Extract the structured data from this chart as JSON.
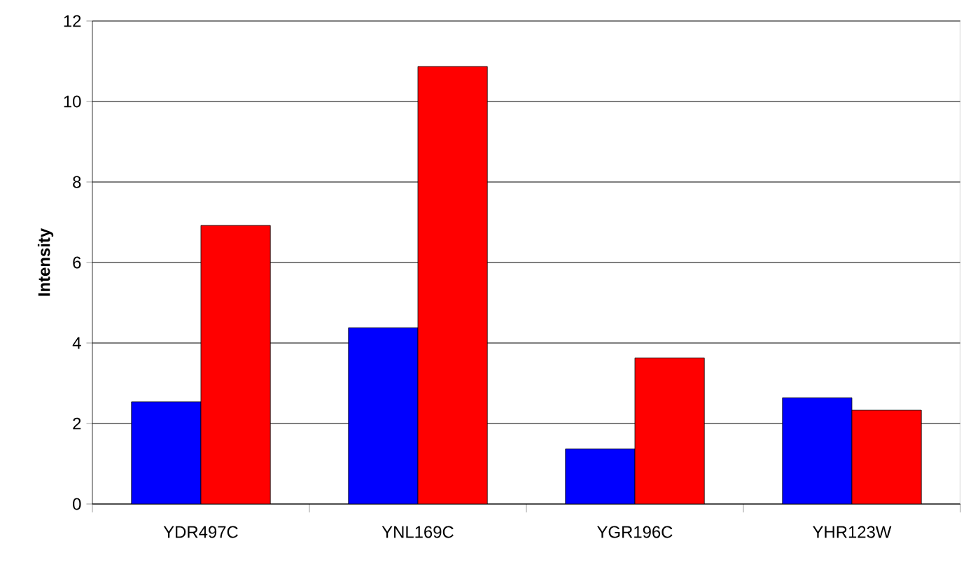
{
  "chart_data": {
    "type": "bar",
    "ylabel": "Intensity",
    "categories": [
      "YDR497C",
      "YNL169C",
      "YGR196C",
      "YHR123W"
    ],
    "series": [
      {
        "color": "#0000ff",
        "values": [
          2.54,
          4.38,
          1.37,
          2.64
        ]
      },
      {
        "color": "#ff0000",
        "values": [
          6.92,
          10.87,
          3.63,
          2.33
        ]
      }
    ],
    "ylim": [
      0,
      12
    ],
    "yticks": [
      0,
      2,
      4,
      6,
      8,
      10,
      12
    ],
    "grid": "y"
  }
}
